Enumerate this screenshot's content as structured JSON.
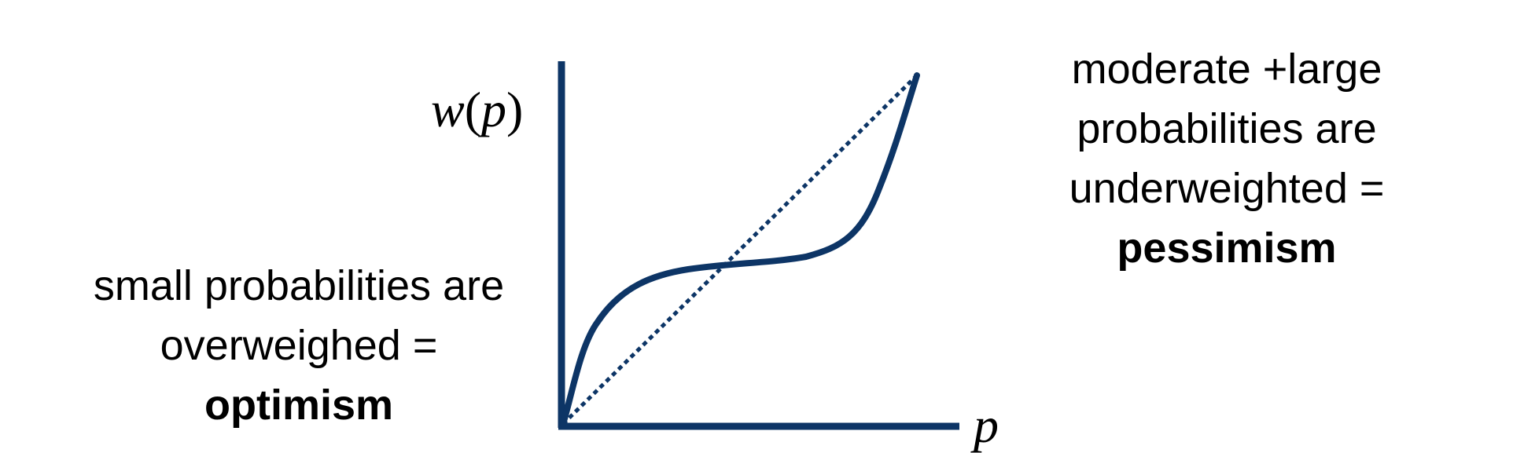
{
  "axes": {
    "y_label": {
      "func": "w",
      "open": "(",
      "var": "p",
      "close": ")"
    },
    "x_label": "p"
  },
  "left_annotation": {
    "line1": "small probabilities are",
    "line2": "overweighed =",
    "line3": "optimism"
  },
  "right_annotation": {
    "line1": "moderate +large",
    "line2": "probabilities are",
    "line3": "underweighted =",
    "line4": "pessimism"
  },
  "colors": {
    "curve": "#0d3566",
    "axis": "#0d3566",
    "text": "#000000"
  }
}
